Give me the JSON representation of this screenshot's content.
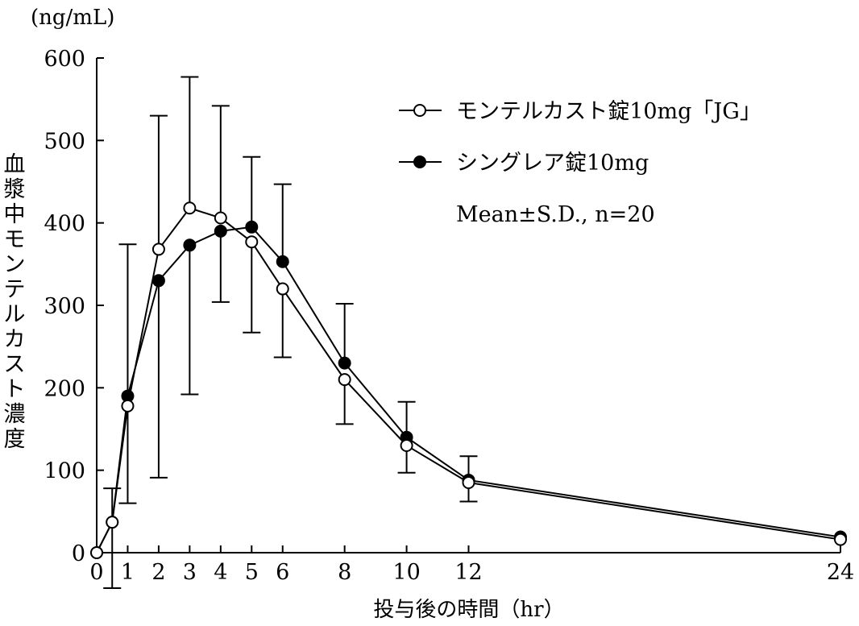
{
  "chart_data": {
    "type": "line",
    "unit_label": "(ng/mL)",
    "ylabel": "血漿中モンテルカスト濃度",
    "xlabel": "投与後の時間（hr）",
    "ylim": [
      0,
      600
    ],
    "yticks": [
      0,
      100,
      200,
      300,
      400,
      500,
      600
    ],
    "xlim": [
      0,
      24
    ],
    "xticks": [
      0,
      1,
      2,
      3,
      4,
      5,
      6,
      8,
      10,
      12,
      24
    ],
    "x": [
      0,
      0.5,
      1,
      2,
      3,
      4,
      5,
      6,
      8,
      10,
      12,
      24
    ],
    "legend_position": "top-right",
    "annotation": "Mean±S.D., n=20",
    "series": [
      {
        "name": "モンテルカスト錠10mg「JG」",
        "marker": "open-circle",
        "values": [
          0,
          37,
          178,
          368,
          418,
          406,
          377,
          320,
          210,
          130,
          85,
          16
        ],
        "sd": [
          0,
          80,
          118,
          162,
          159,
          136,
          110,
          83,
          54,
          33,
          23,
          0
        ],
        "sd_direction": [
          "none",
          "down",
          "down",
          "up",
          "up",
          "up",
          "down",
          "down",
          "down",
          "down",
          "down",
          "none"
        ]
      },
      {
        "name": "シングレア錠10mg",
        "marker": "filled-circle",
        "values": [
          0,
          37,
          190,
          330,
          373,
          390,
          395,
          353,
          230,
          140,
          88,
          19
        ],
        "sd": [
          0,
          41,
          184,
          239,
          181,
          86,
          85,
          94,
          72,
          43,
          29,
          0
        ],
        "sd_direction": [
          "none",
          "up",
          "up",
          "down",
          "down",
          "down",
          "up",
          "up",
          "up",
          "up",
          "up",
          "none"
        ]
      }
    ]
  }
}
